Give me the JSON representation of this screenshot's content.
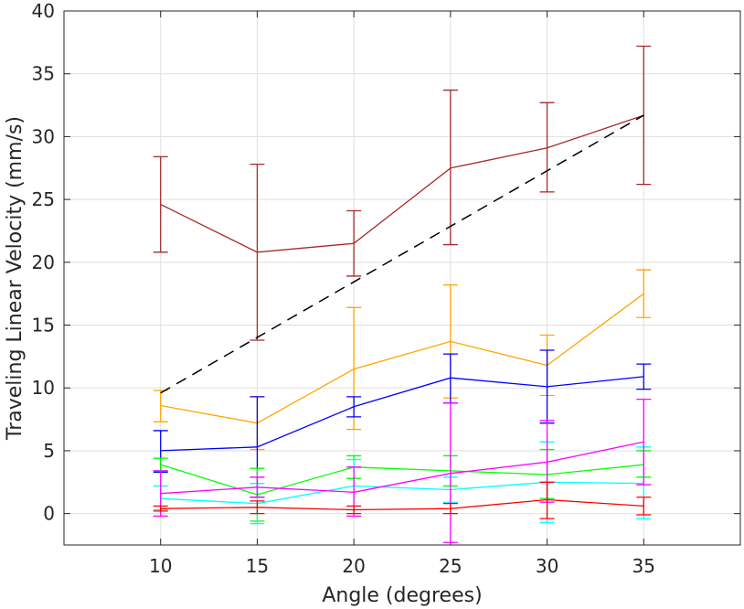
{
  "chart_data": {
    "type": "line",
    "title": "",
    "xlabel": "Angle (degrees)",
    "ylabel": "Traveling Linear Velocity (mm/s)",
    "x": [
      10,
      15,
      20,
      25,
      30,
      35
    ],
    "xlim": [
      5,
      40
    ],
    "ylim": [
      -2.5,
      40
    ],
    "xticks": [
      10,
      15,
      20,
      25,
      30,
      35
    ],
    "yticks": [
      0,
      5,
      10,
      15,
      20,
      25,
      30,
      35,
      40
    ],
    "grid": true,
    "series": [
      {
        "name": "brown",
        "color": "#a52a2a",
        "values": [
          24.6,
          20.8,
          21.5,
          27.5,
          29.1,
          31.7
        ],
        "lower": [
          20.8,
          13.8,
          18.9,
          21.4,
          25.6,
          26.2
        ],
        "upper": [
          28.4,
          27.8,
          24.1,
          33.7,
          32.7,
          37.2
        ]
      },
      {
        "name": "orange",
        "color": "#ffa500",
        "values": [
          8.6,
          7.2,
          11.5,
          13.7,
          11.8,
          17.5
        ],
        "lower": [
          7.3,
          5.1,
          6.7,
          9.2,
          9.4,
          15.6
        ],
        "upper": [
          9.8,
          9.3,
          16.4,
          18.2,
          14.2,
          19.4
        ]
      },
      {
        "name": "blue",
        "color": "#0000ff",
        "values": [
          5.0,
          5.3,
          8.5,
          10.8,
          10.1,
          10.9
        ],
        "lower": [
          3.3,
          1.3,
          7.7,
          8.8,
          7.2,
          9.9
        ],
        "upper": [
          6.6,
          9.3,
          9.3,
          12.7,
          13.0,
          11.9
        ]
      },
      {
        "name": "green",
        "color": "#00ff00",
        "values": [
          3.9,
          1.5,
          3.7,
          3.4,
          3.1,
          3.9
        ],
        "lower": [
          3.4,
          -0.6,
          2.8,
          2.2,
          1.2,
          2.9
        ],
        "upper": [
          4.4,
          3.6,
          4.6,
          4.6,
          5.1,
          5.0
        ]
      },
      {
        "name": "cyan",
        "color": "#00ffff",
        "values": [
          1.2,
          0.8,
          2.2,
          1.9,
          2.5,
          2.4
        ],
        "lower": [
          0.3,
          -0.8,
          0.3,
          0.9,
          -0.7,
          -0.4
        ],
        "upper": [
          2.2,
          2.4,
          4.3,
          2.9,
          5.7,
          5.3
        ]
      },
      {
        "name": "magenta",
        "color": "#ff00ff",
        "values": [
          1.6,
          2.1,
          1.7,
          3.2,
          4.1,
          5.7
        ],
        "lower": [
          -0.2,
          1.3,
          -0.2,
          -2.3,
          0.9,
          2.3
        ],
        "upper": [
          3.4,
          2.9,
          3.7,
          8.8,
          7.4,
          9.1
        ]
      },
      {
        "name": "red",
        "color": "#ff0000",
        "values": [
          0.4,
          0.5,
          0.3,
          0.4,
          1.1,
          0.6
        ],
        "lower": [
          0.2,
          0.0,
          0.0,
          0.0,
          -0.4,
          -0.1
        ],
        "upper": [
          0.6,
          1.0,
          0.6,
          0.8,
          2.5,
          1.3
        ]
      }
    ],
    "reference_line": {
      "color": "#000000",
      "style": "dashed",
      "x": [
        10,
        35
      ],
      "y": [
        9.6,
        31.7
      ]
    }
  }
}
